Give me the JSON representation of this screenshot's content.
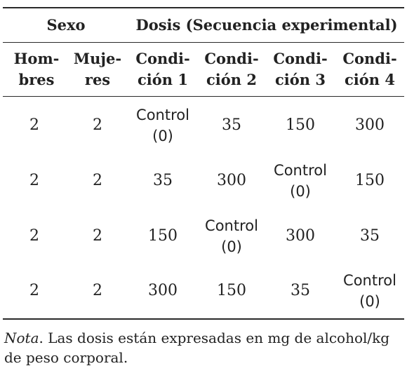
{
  "table": {
    "group_headers": {
      "sex": "Sexo",
      "dose": "Dosis (Secuencia experimental)"
    },
    "columns": [
      {
        "line1": "Hom-",
        "line2": "bres"
      },
      {
        "line1": "Muje-",
        "line2": "res"
      },
      {
        "line1": "Condi-",
        "line2": "ción 1"
      },
      {
        "line1": "Condi-",
        "line2": "ción 2"
      },
      {
        "line1": "Condi-",
        "line2": "ción 3"
      },
      {
        "line1": "Condi-",
        "line2": "ción 4"
      }
    ],
    "rows": [
      {
        "hombres": "2",
        "mujeres": "2",
        "c1": [
          "Control",
          "(0)"
        ],
        "c2": [
          "35"
        ],
        "c3": [
          "150"
        ],
        "c4": [
          "300"
        ]
      },
      {
        "hombres": "2",
        "mujeres": "2",
        "c1": [
          "35"
        ],
        "c2": [
          "300"
        ],
        "c3": [
          "Control",
          "(0)"
        ],
        "c4": [
          "150"
        ]
      },
      {
        "hombres": "2",
        "mujeres": "2",
        "c1": [
          "150"
        ],
        "c2": [
          "Control",
          "(0)"
        ],
        "c3": [
          "300"
        ],
        "c4": [
          "35"
        ]
      },
      {
        "hombres": "2",
        "mujeres": "2",
        "c1": [
          "300"
        ],
        "c2": [
          "150"
        ],
        "c3": [
          "35"
        ],
        "c4": [
          "Control",
          "(0)"
        ]
      }
    ]
  },
  "note": {
    "lead": "Nota",
    "text": ". Las dosis están expresadas en mg de alcohol/kg de peso corporal."
  }
}
